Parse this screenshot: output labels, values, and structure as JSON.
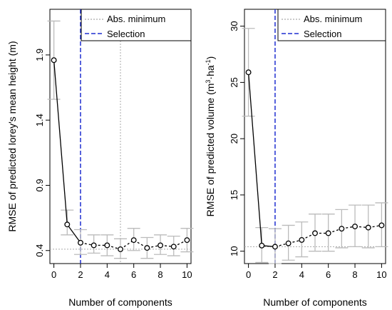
{
  "chart_data": [
    {
      "type": "line",
      "xlabel": "Number of components",
      "ylabel": "RMSE of predicted lorey's mean height (m)",
      "xlim": [
        -0.3,
        10.3
      ],
      "ylim": [
        0.3,
        2.25
      ],
      "xticks": [
        0,
        2,
        4,
        6,
        8,
        10
      ],
      "yticks": [
        0.4,
        0.9,
        1.4,
        1.9
      ],
      "ytick_labels": [
        "0.4",
        "0.9",
        "1.4",
        "1.9"
      ],
      "x": [
        0,
        1,
        2,
        3,
        4,
        5,
        6,
        7,
        8,
        9,
        10
      ],
      "y": [
        1.86,
        0.6,
        0.46,
        0.44,
        0.44,
        0.41,
        0.48,
        0.42,
        0.44,
        0.43,
        0.48
      ],
      "err_low": [
        1.56,
        0.52,
        0.37,
        0.38,
        0.36,
        0.34,
        0.4,
        0.34,
        0.37,
        0.36,
        0.39
      ],
      "err_high": [
        2.16,
        0.71,
        0.56,
        0.52,
        0.52,
        0.49,
        0.57,
        0.5,
        0.52,
        0.51,
        0.57
      ],
      "abs_minimum_x": 5,
      "abs_minimum_y": 0.41,
      "selection_x": 2,
      "legend": {
        "position": "top-right",
        "abs_minimum_label": "Abs. minimum",
        "selection_label": "Selection"
      },
      "colors": {
        "abs_minimum": "#aaaaaa",
        "selection": "#1f2fd1",
        "errorbar": "#bbbbbb",
        "line": "#000000"
      }
    },
    {
      "type": "line",
      "xlabel": "Number of components",
      "ylabel_main": "RMSE of predicted volume (m",
      "ylabel_sup1": "3",
      "ylabel_mid": "·ha",
      "ylabel_sup2": "-1",
      "ylabel_end": ")",
      "xlim": [
        -0.3,
        10.3
      ],
      "ylim": [
        8.9,
        31.5
      ],
      "xticks": [
        0,
        2,
        4,
        6,
        8,
        10
      ],
      "yticks": [
        10,
        15,
        20,
        25,
        30
      ],
      "ytick_labels": [
        "10",
        "15",
        "20",
        "25",
        "30"
      ],
      "x": [
        0,
        1,
        2,
        3,
        4,
        5,
        6,
        7,
        8,
        9,
        10
      ],
      "y": [
        25.9,
        10.5,
        10.4,
        10.7,
        11.0,
        11.6,
        11.6,
        12.0,
        12.2,
        12.1,
        12.3
      ],
      "err_low": [
        22.0,
        9.0,
        8.9,
        9.2,
        9.5,
        10.0,
        10.0,
        10.3,
        10.4,
        10.3,
        10.4
      ],
      "err_high": [
        29.8,
        12.1,
        12.0,
        12.3,
        12.6,
        13.3,
        13.3,
        13.7,
        14.1,
        14.1,
        14.3
      ],
      "abs_minimum_y": 10.4,
      "selection_x": 2,
      "legend": {
        "position": "top-right",
        "abs_minimum_label": "Abs. minimum",
        "selection_label": "Selection"
      },
      "colors": {
        "abs_minimum": "#aaaaaa",
        "selection": "#1f2fd1",
        "errorbar": "#bbbbbb",
        "line": "#000000"
      }
    }
  ]
}
